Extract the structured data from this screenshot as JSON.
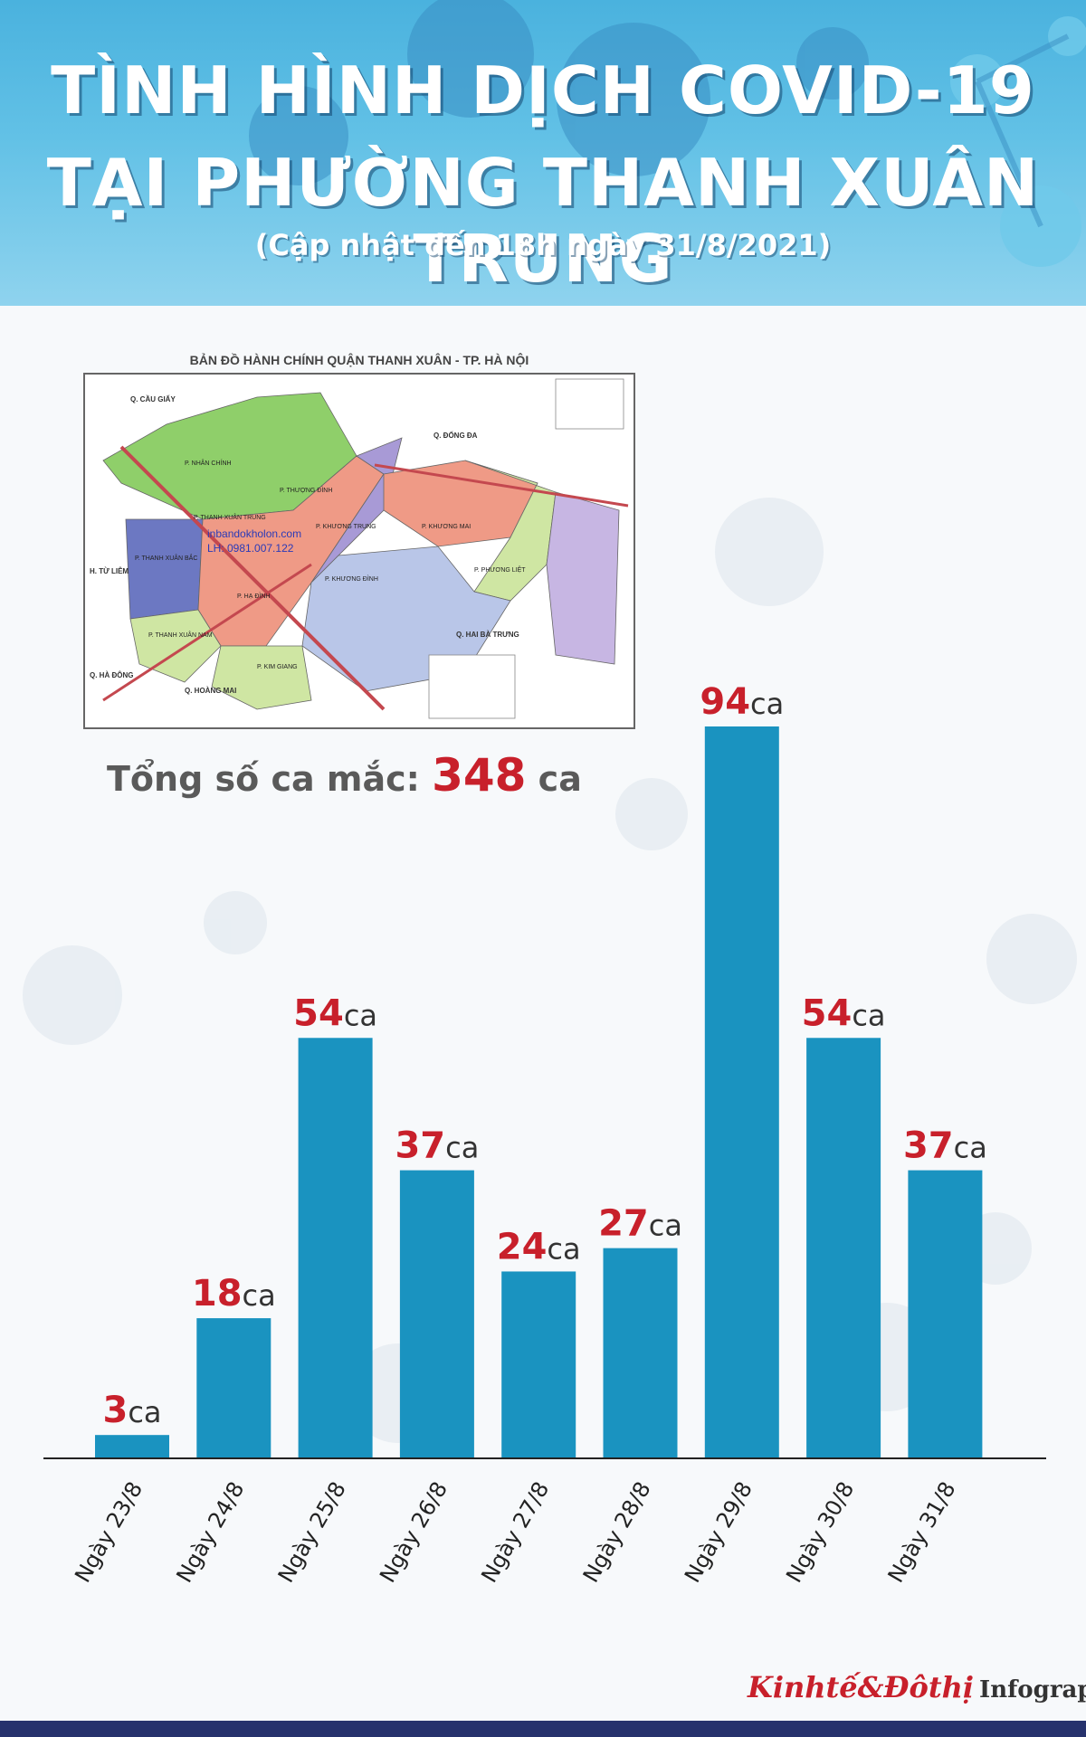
{
  "header": {
    "title_line1": "TÌNH HÌNH DỊCH COVID-19",
    "title_line2": "TẠI PHƯỜNG THANH XUÂN TRUNG",
    "subtitle": "(Cập nhật đến 18h ngày 31/8/2021)"
  },
  "map": {
    "caption": "BẢN ĐỒ HÀNH CHÍNH QUẬN THANH XUÂN - TP. HÀ NỘI",
    "watermark_site": "inbandokholon.com",
    "watermark_phone": "LH: 0981.007.122",
    "districts": [
      "Q. CẦU GIẤY",
      "Q. ĐỐNG ĐA",
      "H. TỪ LIÊM",
      "Q. HAI BÀ TRƯNG",
      "Q. HÀ ĐÔNG",
      "Q. HOÀNG MAI"
    ],
    "wards": [
      "P. NHÂN CHÍNH",
      "P. THƯỢNG ĐÌNH",
      "P. THANH XUÂN TRUNG",
      "P. KHƯƠNG TRUNG",
      "P. KHƯƠNG MAI",
      "P. THANH XUÂN BẮC",
      "P. PHƯƠNG LIỆT",
      "P. KHƯƠNG ĐÌNH",
      "P. HẠ ĐÌNH",
      "P. THANH XUÂN NAM",
      "P. KIM GIANG"
    ],
    "colors": {
      "green": "#8fcf6a",
      "salmon": "#ef9a86",
      "purple": "#a89ad6",
      "navy": "#6c78c2",
      "light_blue": "#b9c6e8",
      "light_green": "#cfe6a3",
      "lavender": "#c7b6e3",
      "road": "#c4484f"
    }
  },
  "total": {
    "label": "Tổng số ca mắc:",
    "value": "348",
    "unit": "ca"
  },
  "chart_data": {
    "type": "bar",
    "categories": [
      "Ngày 23/8",
      "Ngày 24/8",
      "Ngày 25/8",
      "Ngày 26/8",
      "Ngày 27/8",
      "Ngày 28/8",
      "Ngày 29/8",
      "Ngày 30/8",
      "Ngày 31/8"
    ],
    "values": [
      3,
      18,
      54,
      37,
      24,
      27,
      94,
      54,
      37
    ],
    "value_suffix": "ca",
    "title": "",
    "xlabel": "",
    "ylabel": "",
    "ylim": [
      0,
      94
    ],
    "grid": false,
    "legend": "none",
    "bar_color": "#1a93c0",
    "value_color": "#c8202b",
    "suffix_color": "#333333"
  },
  "brand": {
    "name": "Kinhtế&Đôthị",
    "label": "Infographic"
  },
  "colors": {
    "header_top": "#4ab2de",
    "footer_bar": "#26326d",
    "accent_red": "#c8202b"
  }
}
